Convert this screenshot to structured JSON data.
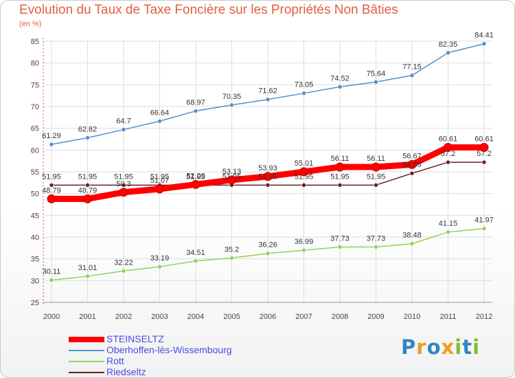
{
  "chart_data": {
    "type": "line",
    "title": "Evolution du Taux de Taxe Foncière sur les Propriétés Non Bâties",
    "ylabel": "(en %)",
    "xlabel": "",
    "ylim": [
      25,
      85
    ],
    "yticks": [
      25,
      30,
      35,
      40,
      45,
      50,
      55,
      60,
      65,
      70,
      75,
      80,
      85
    ],
    "grid": true,
    "categories": [
      "2000",
      "2001",
      "2002",
      "2003",
      "2004",
      "2005",
      "2006",
      "2007",
      "2008",
      "2009",
      "2010",
      "2011",
      "2012"
    ],
    "series": [
      {
        "name": "Riedseltz",
        "color": "#6b1e1e",
        "values": [
          51.95,
          51.95,
          51.95,
          51.95,
          51.95,
          51.95,
          51.95,
          51.95,
          51.95,
          51.95,
          54.65,
          57.2,
          57.2
        ],
        "labels": [
          "51.95",
          "51.95",
          "51.95",
          "51.95",
          "51.95",
          "51.95",
          "51.95",
          "51.95",
          "51.95",
          "51.95",
          "54.65",
          "57.2",
          "57.2"
        ]
      },
      {
        "name": "Oberhoffen-lès-Wissembourg",
        "color": "#4f8fd0",
        "values": [
          61.29,
          62.82,
          64.7,
          66.64,
          68.97,
          70.35,
          71.62,
          73.05,
          74.52,
          75.64,
          77.15,
          82.35,
          84.41
        ],
        "labels": [
          "61.29",
          "62.82",
          "64.7",
          "66.64",
          "68.97",
          "70.35",
          "71.62",
          "73.05",
          "74.52",
          "75.64",
          "77.15",
          "82.35",
          "84.41"
        ]
      },
      {
        "name": "Rott",
        "color": "#8fd15a",
        "values": [
          30.11,
          31.01,
          32.22,
          33.19,
          34.51,
          35.2,
          36.26,
          36.99,
          37.73,
          37.73,
          38.48,
          41.15,
          41.97
        ],
        "labels": [
          "30.11",
          "31.01",
          "32.22",
          "33.19",
          "34.51",
          "35.2",
          "36.26",
          "36.99",
          "37.73",
          "37.73",
          "38.48",
          "41.15",
          "41.97"
        ]
      },
      {
        "name": "STEINSELTZ",
        "color": "#ff0000",
        "values": [
          48.79,
          48.79,
          50.3,
          51.07,
          52.09,
          53.13,
          53.93,
          55.01,
          56.11,
          56.11,
          56.67,
          60.61,
          60.61
        ],
        "labels": [
          "48.79",
          "48.79",
          "50.3",
          "51.07",
          "52.09",
          "53.13",
          "53.93",
          "55.01",
          "56.11",
          "56.11",
          "56.67",
          "60.61",
          "60.61"
        ]
      }
    ],
    "legend": {
      "position": "bottom-left",
      "items": [
        {
          "name": "STEINSELTZ",
          "color": "#ff0000"
        },
        {
          "name": "Oberhoffen-lès-Wissembourg",
          "color": "#4f8fd0"
        },
        {
          "name": "Rott",
          "color": "#8fd15a"
        },
        {
          "name": "Riedseltz",
          "color": "#6b1e1e"
        }
      ]
    }
  },
  "logo": {
    "text": "Proxiti",
    "letters": [
      {
        "char": "P",
        "color": "#2e86c8"
      },
      {
        "char": "r",
        "color": "#f39a1e"
      },
      {
        "char": "o",
        "color": "#2e86c8"
      },
      {
        "char": "x",
        "color": "#f39a1e"
      },
      {
        "char": "i",
        "color": "#7bbf35"
      },
      {
        "char": "t",
        "color": "#2e86c8"
      },
      {
        "char": "i",
        "color": "#7bbf35"
      }
    ]
  }
}
